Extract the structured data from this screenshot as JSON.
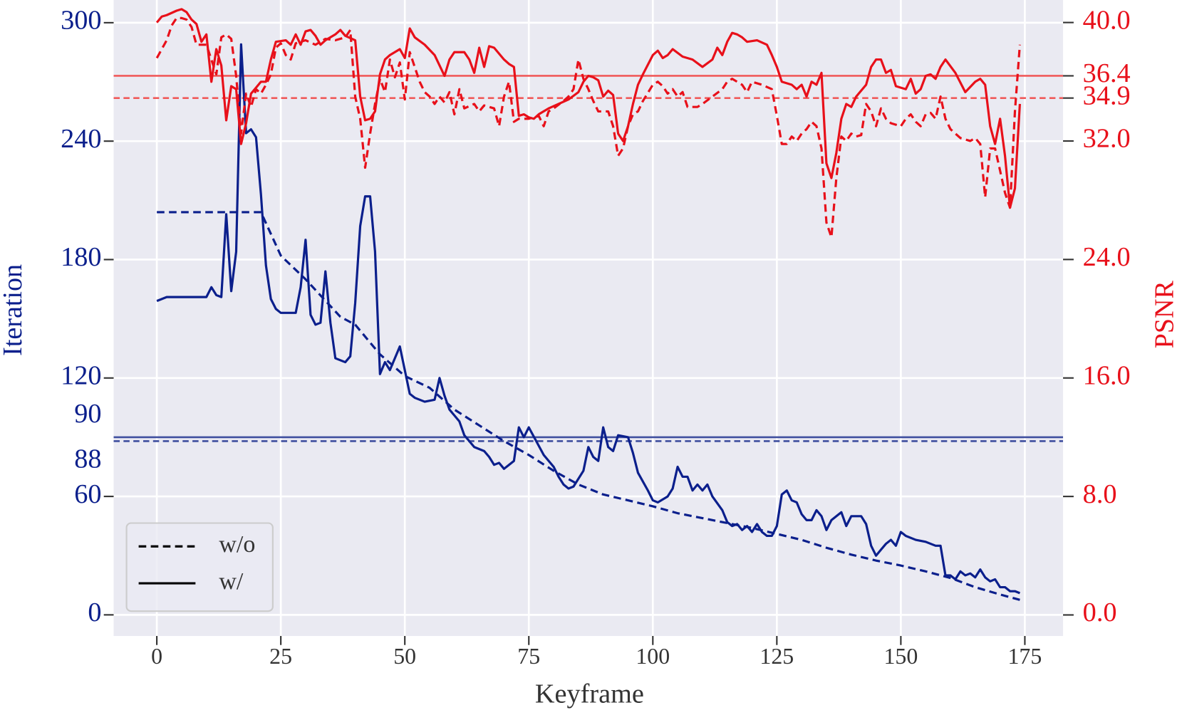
{
  "chart_data": {
    "type": "line",
    "xlabel": "Keyframe",
    "ylabel": "Iteration",
    "y2label": "PSNR",
    "y_color": "#0b1f8c",
    "y2_color": "#e8101a",
    "xlim": [
      -8.7,
      182.7
    ],
    "ylim": [
      -10.7,
      311.5
    ],
    "y2lim": [
      -1.42,
      41.52
    ],
    "xticks": [
      0,
      25,
      50,
      75,
      100,
      125,
      150,
      175
    ],
    "yticks": [
      0,
      60,
      120,
      180,
      240,
      300
    ],
    "y2ticks": [
      {
        "value": 0,
        "label": "0.0"
      },
      {
        "value": 8,
        "label": "8.0"
      },
      {
        "value": 16,
        "label": "16.0"
      },
      {
        "value": 24,
        "label": "24.0"
      },
      {
        "value": 32,
        "label": "32.0"
      },
      {
        "value": 40,
        "label": "40.0"
      }
    ],
    "grid": true,
    "hlines": [
      {
        "value": 90,
        "label": "90",
        "style": "solid",
        "color": "#3f4f9f"
      },
      {
        "value": 88,
        "label": "88",
        "style": "dashed",
        "color": "#3f4f9f"
      },
      {
        "value": 36.4,
        "label": "36.4",
        "style": "solid",
        "color": "#f05a5a",
        "axis": "y2"
      },
      {
        "value": 34.9,
        "label": "34.9",
        "style": "dashed",
        "color": "#f05a5a",
        "axis": "y2"
      }
    ],
    "legend": {
      "loc": "lower left",
      "entries": [
        {
          "label": "w/o",
          "style": "dashed"
        },
        {
          "label": "w/",
          "style": "solid"
        }
      ]
    },
    "series": [
      {
        "color": "#0b1f8c",
        "style": "dashed",
        "x": [
          0,
          21,
          25,
          30,
          37,
          40,
          45,
          50,
          55,
          60,
          65,
          70,
          75,
          80,
          85,
          90,
          95,
          100,
          105,
          110,
          115,
          120,
          125,
          130,
          135,
          140,
          145,
          150,
          155,
          160,
          165,
          170,
          174
        ],
        "values": [
          204,
          204,
          182,
          170,
          151,
          147,
          132,
          121,
          115,
          104,
          96,
          88,
          81,
          73,
          66,
          61,
          58,
          55,
          51.5,
          49,
          46.5,
          44,
          41,
          38,
          34,
          30.5,
          27.5,
          25,
          22,
          18.7,
          14,
          10.3,
          7.6
        ]
      },
      {
        "color": "#0b1f8c",
        "style": "solid",
        "x": [
          0,
          2,
          4,
          8,
          10,
          11,
          12,
          13,
          14,
          15,
          16,
          17,
          18,
          19,
          20,
          21,
          22,
          23,
          24,
          25,
          28,
          29,
          30,
          31,
          32,
          33,
          34,
          35,
          36,
          38,
          39,
          40,
          41,
          42,
          43,
          44,
          45,
          46,
          47,
          49,
          51,
          52,
          54,
          56,
          57,
          58,
          59,
          61,
          62,
          64,
          66,
          67,
          68,
          69,
          70,
          71,
          72,
          73,
          74,
          75,
          78,
          80,
          81,
          82,
          83,
          84,
          86,
          87,
          88,
          89,
          90,
          91,
          92,
          93,
          95,
          96,
          97,
          99,
          100,
          101,
          103,
          104,
          105,
          106,
          107,
          108,
          109,
          110,
          111,
          112,
          114,
          115,
          116,
          117,
          118,
          119,
          120,
          121,
          122,
          123,
          124,
          125,
          126,
          127,
          128,
          129,
          130,
          131,
          132,
          133,
          134,
          135,
          136,
          138,
          139,
          140,
          142,
          143,
          144,
          145,
          146,
          147,
          148,
          149,
          150,
          151,
          153,
          155,
          156,
          157,
          158,
          159,
          160,
          161,
          162,
          163,
          164,
          165,
          166,
          167,
          168,
          169,
          170,
          171,
          172,
          173,
          174
        ],
        "values": [
          159,
          161,
          161,
          161,
          161,
          166,
          162,
          161,
          203,
          164,
          184,
          289,
          244,
          246,
          242,
          213,
          177,
          160,
          155,
          153,
          153,
          166,
          190,
          152,
          147,
          148,
          174,
          148,
          130,
          128,
          131,
          158,
          197,
          212,
          212,
          184,
          122,
          128,
          124,
          136,
          112,
          110,
          108,
          109,
          120,
          111,
          104,
          98,
          91,
          85,
          83,
          80,
          76,
          77,
          74,
          76,
          78,
          95,
          90,
          95,
          81,
          75,
          70,
          66,
          64,
          65,
          73,
          85,
          80,
          78,
          95,
          85,
          83,
          91,
          90,
          82,
          72,
          63,
          58,
          57,
          60,
          64,
          75,
          70,
          70,
          63,
          66,
          63,
          66,
          60,
          53,
          47,
          45,
          46,
          43,
          45,
          42,
          46,
          42,
          40,
          40,
          45,
          61,
          63,
          58,
          57,
          51,
          48,
          48,
          53,
          50,
          43,
          48,
          52,
          45,
          50,
          50,
          46,
          35,
          30,
          33,
          36,
          38,
          35,
          42,
          40,
          38,
          37,
          36,
          35,
          35,
          20,
          20,
          18,
          22,
          20,
          21,
          19,
          23,
          19,
          17,
          18,
          14,
          14,
          12,
          12,
          11
        ]
      },
      {
        "color": "#e8101a",
        "style": "dashed",
        "axis": "y2",
        "x": [
          0,
          1,
          2,
          3,
          4,
          5,
          6,
          7,
          8,
          10,
          12,
          13,
          14,
          15,
          16,
          17,
          18,
          19,
          20,
          21,
          22,
          23,
          24,
          25,
          26,
          27,
          28,
          30,
          32,
          34,
          36,
          38,
          39,
          40,
          41,
          42,
          43,
          44,
          45,
          46,
          47,
          48,
          49,
          50,
          51,
          53,
          54,
          55,
          56,
          57,
          58,
          59,
          60,
          61,
          62,
          64,
          65,
          66,
          68,
          69,
          70,
          71,
          72,
          73,
          75,
          77,
          78,
          79,
          80,
          82,
          83,
          84,
          85,
          86,
          87,
          88,
          89,
          91,
          92,
          93,
          94,
          95,
          96,
          97,
          98,
          100,
          101,
          102,
          103,
          104,
          105,
          106,
          107,
          109,
          110,
          112,
          114,
          115,
          116,
          118,
          119,
          120,
          122,
          124,
          125,
          126,
          127,
          128,
          129,
          130,
          131,
          132,
          133,
          134,
          135,
          136,
          137,
          138,
          139,
          140,
          141,
          142,
          143,
          144,
          145,
          146,
          147,
          148,
          150,
          151,
          152,
          153,
          154,
          155,
          156,
          157,
          158,
          159,
          160,
          162,
          164,
          165,
          166,
          167,
          168,
          169,
          170,
          171,
          172,
          173,
          174
        ],
        "values": [
          37.6,
          38.2,
          38.8,
          39.8,
          40.3,
          40.3,
          40.2,
          39.7,
          38.5,
          38.5,
          36.5,
          39.0,
          39.2,
          38.9,
          36.4,
          32.5,
          35.2,
          34.3,
          35.5,
          35.2,
          35.8,
          36.5,
          38.3,
          38.6,
          37.8,
          37.5,
          38.6,
          38.8,
          38.5,
          38.9,
          38.8,
          39.0,
          39.5,
          35.0,
          33.5,
          30.2,
          32.5,
          34.5,
          36.2,
          35.3,
          37.5,
          36.3,
          37.3,
          34.8,
          38.0,
          36.0,
          35.3,
          35.0,
          34.5,
          35.0,
          34.6,
          35.3,
          33.8,
          35.5,
          34.2,
          34.5,
          34.0,
          34.4,
          34.2,
          33.0,
          35.0,
          36.0,
          33.3,
          33.5,
          33.5,
          33.7,
          33.0,
          34.0,
          34.2,
          34.7,
          35.0,
          35.5,
          37.5,
          36.2,
          35.5,
          34.7,
          34.0,
          34.0,
          33.0,
          31.0,
          31.5,
          33.0,
          33.8,
          34.0,
          34.7,
          35.8,
          36.0,
          35.7,
          35.2,
          35.5,
          35.0,
          35.3,
          34.3,
          34.3,
          34.5,
          35.0,
          35.5,
          36.0,
          36.2,
          35.8,
          35.3,
          36.0,
          35.8,
          35.5,
          33.7,
          31.8,
          31.8,
          32.3,
          32.0,
          32.5,
          32.8,
          33.3,
          33.0,
          31.5,
          26.5,
          25.5,
          29.5,
          32.3,
          32.0,
          32.5,
          32.3,
          32.4,
          34.5,
          34.0,
          33.0,
          34.2,
          33.5,
          33.2,
          33.0,
          33.5,
          33.8,
          33.3,
          33.0,
          33.8,
          33.9,
          33.5,
          35.0,
          33.5,
          32.8,
          32.2,
          32.0,
          32.2,
          31.8,
          28.2,
          31.5,
          31.5,
          30.0,
          28.5,
          27.5,
          34.0,
          38.5
        ]
      },
      {
        "color": "#e8101a",
        "style": "solid",
        "axis": "y2",
        "x": [
          0,
          1,
          2,
          4,
          5,
          6,
          7,
          8,
          9,
          10,
          11,
          12,
          13,
          14,
          15,
          16,
          17,
          18,
          19,
          20,
          21,
          22,
          23,
          24,
          26,
          27,
          28,
          29,
          30,
          31,
          32,
          33,
          34,
          36,
          37,
          38,
          40,
          41,
          42,
          43,
          44,
          45,
          46,
          47,
          49,
          50,
          51,
          52,
          54,
          56,
          58,
          59,
          60,
          62,
          63,
          64,
          65,
          66,
          67,
          68,
          70,
          71,
          72,
          73,
          74,
          75,
          76,
          77,
          79,
          81,
          83,
          85,
          86,
          87,
          88,
          89,
          90,
          91,
          92,
          93,
          94,
          95,
          96,
          97,
          98,
          100,
          101,
          102,
          103,
          104,
          106,
          108,
          110,
          112,
          113,
          114,
          115,
          116,
          117,
          118,
          119,
          121,
          123,
          124,
          125,
          126,
          128,
          129,
          130,
          131,
          132,
          133,
          134,
          135,
          136,
          137,
          138,
          139,
          140,
          141,
          143,
          144,
          145,
          146,
          147,
          148,
          149,
          151,
          152,
          153,
          154,
          155,
          156,
          157,
          158,
          159,
          161,
          163,
          165,
          166,
          167,
          168,
          169,
          170,
          171,
          172,
          173,
          174
        ],
        "values": [
          40.0,
          40.4,
          40.5,
          40.8,
          40.9,
          40.7,
          40.2,
          39.9,
          38.7,
          39.2,
          36.0,
          38.2,
          37.1,
          33.4,
          35.7,
          35.5,
          31.8,
          33.2,
          35.2,
          35.6,
          36.0,
          36.0,
          37.5,
          38.7,
          38.8,
          38.5,
          39.2,
          38.5,
          39.4,
          39.5,
          39.1,
          38.5,
          38.8,
          39.2,
          39.5,
          39.1,
          38.8,
          35.0,
          33.4,
          33.5,
          34.0,
          36.5,
          37.5,
          37.8,
          38.2,
          37.6,
          39.6,
          39.0,
          38.5,
          37.8,
          36.4,
          37.5,
          38.0,
          38.0,
          37.5,
          36.6,
          38.3,
          37.0,
          38.4,
          38.3,
          37.5,
          37.2,
          37.0,
          33.7,
          33.8,
          33.6,
          33.5,
          33.8,
          34.2,
          34.5,
          34.8,
          35.3,
          36.0,
          36.4,
          36.3,
          36.1,
          35.0,
          35.4,
          35.1,
          32.5,
          32.0,
          33.0,
          34.5,
          35.8,
          36.5,
          37.8,
          38.1,
          37.6,
          37.8,
          38.2,
          37.7,
          37.5,
          37.0,
          37.5,
          38.3,
          37.8,
          38.7,
          39.3,
          39.2,
          39.0,
          38.7,
          38.8,
          38.5,
          37.8,
          37.0,
          36.0,
          35.8,
          35.5,
          35.8,
          35.0,
          36.0,
          35.8,
          36.6,
          30.5,
          29.5,
          31.2,
          33.5,
          34.5,
          34.3,
          35.0,
          35.8,
          37.0,
          37.5,
          37.5,
          36.6,
          36.8,
          35.7,
          35.5,
          36.2,
          35.2,
          35.5,
          36.4,
          36.5,
          36.2,
          37.0,
          37.5,
          36.6,
          35.3,
          36.0,
          36.2,
          35.8,
          33.0,
          31.8,
          33.5,
          31.0,
          27.5,
          28.8,
          34.5
        ]
      }
    ]
  }
}
